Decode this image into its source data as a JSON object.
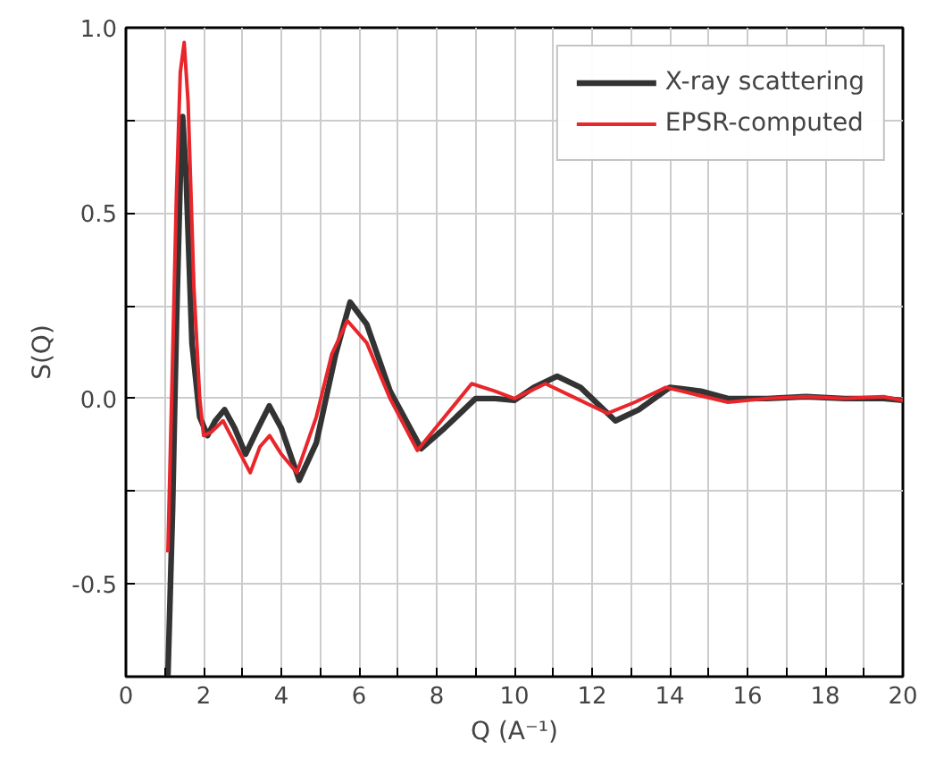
{
  "chart_data": {
    "type": "line",
    "xlabel": "Q (A⁻¹)",
    "ylabel": "S(Q)",
    "xlim": [
      0,
      20
    ],
    "ylim": [
      -0.75,
      1.0
    ],
    "xticks": [
      0,
      {
        "value": 1,
        "label": null
      },
      2,
      {
        "value": 3,
        "label": null
      },
      4,
      {
        "value": 5,
        "label": null
      },
      6,
      {
        "value": 7,
        "label": null
      },
      8,
      {
        "value": 9,
        "label": null
      },
      10,
      {
        "value": 11,
        "label": null
      },
      12,
      {
        "value": 13,
        "label": null
      },
      14,
      {
        "value": 15,
        "label": null
      },
      16,
      {
        "value": 17,
        "label": null
      },
      18,
      {
        "value": 19,
        "label": null
      },
      20
    ],
    "yticks": [
      {
        "value": -0.75,
        "label": null
      },
      -0.5,
      {
        "value": -0.25,
        "label": null
      },
      {
        "value": 0,
        "label": "0.0"
      },
      {
        "value": 0.25,
        "label": null
      },
      0.5,
      {
        "value": 0.75,
        "label": null
      },
      {
        "value": 1,
        "label": "1.0"
      }
    ],
    "grid": true,
    "legend": "top right",
    "line_style": "solid",
    "marker": "none",
    "series": [
      {
        "name": "X-ray scattering",
        "color": "#333333",
        "x": [
          1.08,
          1.2,
          1.3,
          1.4,
          1.46,
          1.55,
          1.7,
          1.9,
          2.1,
          2.3,
          2.54,
          2.8,
          3.08,
          3.4,
          3.69,
          4.0,
          4.46,
          4.9,
          5.4,
          5.77,
          6.2,
          6.8,
          7.6,
          8.2,
          9.0,
          9.5,
          10.0,
          10.5,
          11.1,
          11.7,
          12.6,
          13.2,
          14.0,
          14.8,
          15.5,
          16.5,
          17.5,
          18.5,
          19.5,
          20.0
        ],
        "values": [
          -0.75,
          -0.3,
          0.2,
          0.6,
          0.76,
          0.6,
          0.15,
          -0.05,
          -0.1,
          -0.06,
          -0.03,
          -0.08,
          -0.15,
          -0.08,
          -0.02,
          -0.08,
          -0.22,
          -0.12,
          0.12,
          0.26,
          0.2,
          0.02,
          -0.135,
          -0.08,
          0.0,
          0.0,
          -0.005,
          0.03,
          0.06,
          0.03,
          -0.06,
          -0.03,
          0.03,
          0.02,
          0.0,
          0.0,
          0.005,
          0.0,
          0.0,
          -0.005
        ]
      },
      {
        "name": "EPSR-computed",
        "color": "#e8262b",
        "x": [
          1.08,
          1.2,
          1.3,
          1.4,
          1.5,
          1.6,
          1.75,
          1.9,
          2.0,
          2.2,
          2.5,
          2.8,
          3.2,
          3.45,
          3.7,
          4.0,
          4.4,
          4.9,
          5.3,
          5.7,
          6.2,
          6.8,
          7.5,
          8.2,
          8.9,
          9.5,
          10.0,
          10.8,
          11.6,
          12.4,
          13.1,
          13.9,
          14.7,
          15.5,
          16.5,
          17.5,
          18.5,
          19.5,
          20.0
        ],
        "values": [
          -0.415,
          0.1,
          0.55,
          0.88,
          0.96,
          0.8,
          0.3,
          0.0,
          -0.1,
          -0.09,
          -0.06,
          -0.12,
          -0.2,
          -0.13,
          -0.1,
          -0.15,
          -0.2,
          -0.05,
          0.12,
          0.21,
          0.15,
          0.0,
          -0.14,
          -0.05,
          0.04,
          0.02,
          0.0,
          0.04,
          0.0,
          -0.04,
          -0.01,
          0.03,
          0.01,
          -0.01,
          0.0,
          0.005,
          0.0,
          0.005,
          -0.005
        ]
      }
    ]
  }
}
